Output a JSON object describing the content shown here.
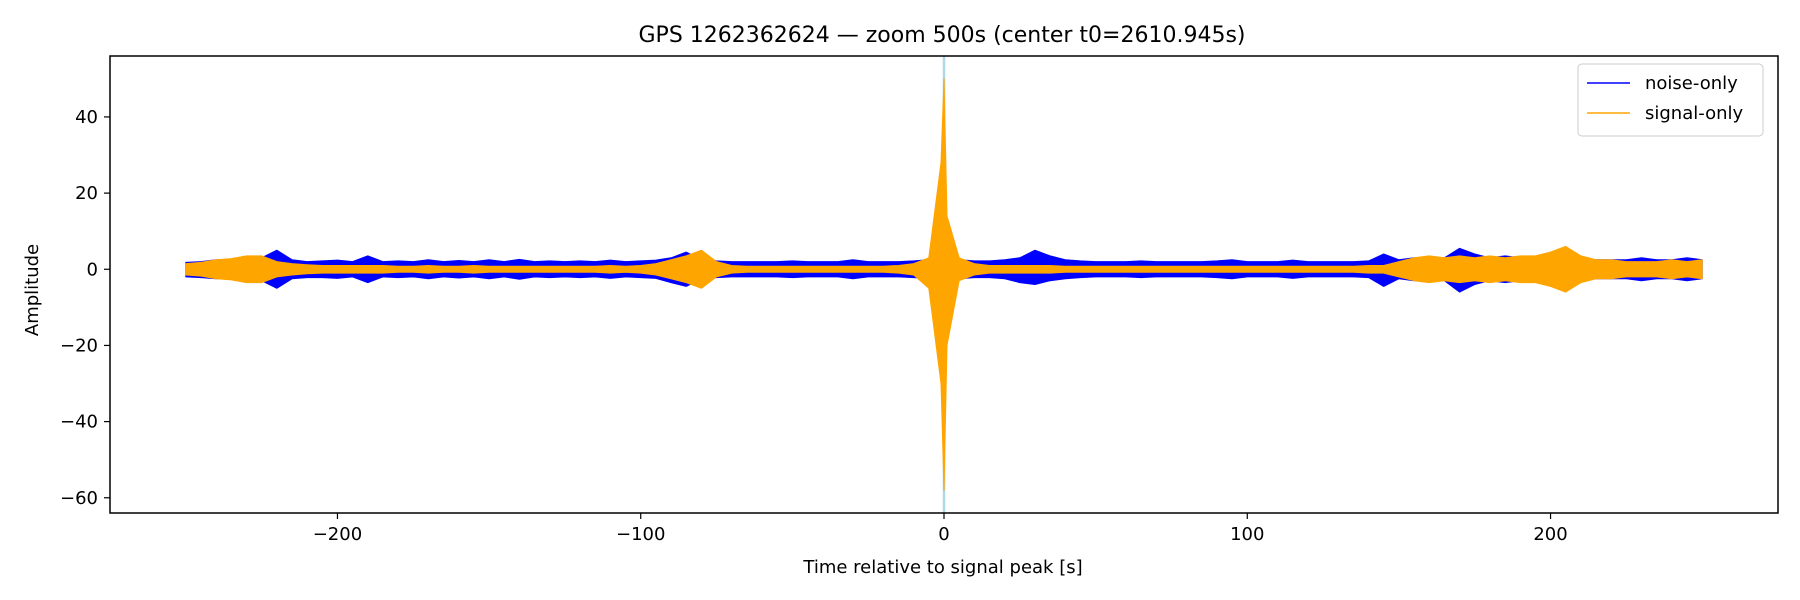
{
  "chart_data": {
    "type": "line",
    "title": "GPS 1262362624 — zoom 500s (center t0=2610.945s)",
    "xlabel": "Time relative to signal peak [s]",
    "ylabel": "Amplitude",
    "xlim": [
      -275,
      275
    ],
    "ylim": [
      -64,
      56
    ],
    "x_ticks": [
      -200,
      -100,
      0,
      100,
      200
    ],
    "x_tick_labels": [
      "−200",
      "−100",
      "0",
      "100",
      "200"
    ],
    "y_ticks": [
      -60,
      -40,
      -20,
      0,
      20,
      40
    ],
    "y_tick_labels": [
      "−60",
      "−40",
      "−20",
      "0",
      "20",
      "40"
    ],
    "grid": false,
    "legend_position": "top-right",
    "marker_line": {
      "x": 0,
      "color": "#add8e6"
    },
    "series": [
      {
        "name": "noise-only",
        "color": "#0000ff",
        "x": [
          -250,
          -245,
          -240,
          -235,
          -230,
          -225,
          -220,
          -215,
          -210,
          -205,
          -200,
          -195,
          -190,
          -185,
          -180,
          -175,
          -170,
          -165,
          -160,
          -155,
          -150,
          -145,
          -140,
          -135,
          -130,
          -125,
          -120,
          -115,
          -110,
          -105,
          -100,
          -95,
          -90,
          -85,
          -80,
          -75,
          -70,
          -65,
          -60,
          -55,
          -50,
          -45,
          -40,
          -35,
          -30,
          -25,
          -20,
          -15,
          -10,
          -5,
          -1,
          0,
          1,
          5,
          10,
          15,
          20,
          25,
          30,
          35,
          40,
          45,
          50,
          55,
          60,
          65,
          70,
          75,
          80,
          85,
          90,
          95,
          100,
          105,
          110,
          115,
          120,
          125,
          130,
          135,
          140,
          145,
          150,
          155,
          160,
          165,
          170,
          175,
          180,
          185,
          190,
          195,
          200,
          205,
          210,
          215,
          220,
          225,
          230,
          235,
          240,
          245,
          250
        ],
        "y_max": [
          1.8,
          2,
          2.5,
          2.2,
          2.8,
          3,
          5,
          2.5,
          2,
          2.2,
          2.4,
          2,
          3.5,
          2,
          2.2,
          2,
          2.5,
          2,
          2.3,
          2,
          2.5,
          2,
          2.6,
          2,
          2.2,
          2,
          2.2,
          2,
          2.4,
          2,
          2.2,
          2.4,
          3,
          4.5,
          2.5,
          2.2,
          2,
          2,
          2,
          2,
          2.2,
          2,
          2,
          2,
          2.5,
          2,
          2,
          2,
          2.2,
          2.5,
          4,
          5,
          3.5,
          2.5,
          2.2,
          2.2,
          2.5,
          3,
          5,
          3.5,
          2.5,
          2.2,
          2,
          2,
          2,
          2.2,
          2,
          2,
          2,
          2,
          2.2,
          2.5,
          2,
          2,
          2,
          2.4,
          2,
          2,
          2,
          2,
          2.2,
          4,
          2.5,
          3,
          2.5,
          3,
          5.5,
          4,
          3,
          3.5,
          3,
          2.5,
          3,
          3.5,
          3,
          2.5,
          2.5,
          2.5,
          3,
          2.5,
          2.5,
          3,
          2.5
        ],
        "y_min": [
          -2,
          -2.2,
          -2.5,
          -2.2,
          -3,
          -3,
          -5,
          -2.5,
          -2.2,
          -2.2,
          -2.4,
          -2,
          -3.5,
          -2,
          -2.2,
          -2,
          -2.5,
          -2,
          -2.3,
          -2,
          -2.5,
          -2,
          -2.6,
          -2,
          -2.2,
          -2,
          -2.2,
          -2,
          -2.4,
          -2,
          -2.2,
          -2.4,
          -3.5,
          -4.5,
          -2.5,
          -2.2,
          -2,
          -2,
          -2,
          -2,
          -2.2,
          -2,
          -2,
          -2,
          -2.5,
          -2,
          -2,
          -2,
          -2.2,
          -2.5,
          -4,
          -5,
          -3.5,
          -2.5,
          -2.2,
          -2.2,
          -2.5,
          -3.5,
          -4,
          -3,
          -2.5,
          -2.2,
          -2,
          -2,
          -2,
          -2.2,
          -2,
          -2,
          -2,
          -2,
          -2.2,
          -2.5,
          -2,
          -2,
          -2,
          -2.4,
          -2,
          -2,
          -2,
          -2,
          -2.2,
          -4.5,
          -2.5,
          -3,
          -2.5,
          -3,
          -6,
          -4,
          -3,
          -3.5,
          -3,
          -2.5,
          -3,
          -4,
          -3,
          -2.5,
          -2.5,
          -2.5,
          -3,
          -2.5,
          -2.5,
          -3,
          -2.5
        ]
      },
      {
        "name": "signal-only",
        "color": "#ffa500",
        "x": [
          -250,
          -245,
          -240,
          -235,
          -230,
          -225,
          -220,
          -215,
          -210,
          -205,
          -200,
          -195,
          -190,
          -185,
          -180,
          -175,
          -170,
          -165,
          -160,
          -155,
          -150,
          -145,
          -140,
          -135,
          -130,
          -125,
          -120,
          -115,
          -110,
          -105,
          -100,
          -95,
          -90,
          -85,
          -80,
          -75,
          -70,
          -65,
          -60,
          -55,
          -50,
          -45,
          -40,
          -35,
          -30,
          -25,
          -20,
          -15,
          -10,
          -5,
          -1,
          0,
          1,
          5,
          10,
          15,
          20,
          25,
          30,
          35,
          40,
          45,
          50,
          55,
          60,
          65,
          70,
          75,
          80,
          85,
          90,
          95,
          100,
          105,
          110,
          115,
          120,
          125,
          130,
          135,
          140,
          145,
          150,
          155,
          160,
          165,
          170,
          175,
          180,
          185,
          190,
          195,
          200,
          205,
          210,
          215,
          220,
          225,
          230,
          235,
          240,
          245,
          250
        ],
        "y_max": [
          1.5,
          1.8,
          2.5,
          2.8,
          3.5,
          3.5,
          2,
          1.5,
          1.2,
          1,
          1,
          1,
          1,
          1,
          0.8,
          0.8,
          1,
          0.8,
          0.8,
          1,
          0.8,
          0.8,
          0.8,
          0.8,
          0.8,
          0.8,
          0.8,
          0.8,
          1,
          0.8,
          1,
          1.5,
          2.5,
          3.5,
          5,
          2,
          1,
          0.8,
          0.8,
          0.8,
          0.8,
          0.8,
          0.8,
          0.8,
          0.8,
          0.8,
          0.8,
          1,
          1.5,
          3,
          28,
          50,
          14,
          3,
          1.5,
          1,
          1,
          1,
          1,
          1,
          0.8,
          0.8,
          0.8,
          0.8,
          0.8,
          0.8,
          0.8,
          0.8,
          0.8,
          0.8,
          0.8,
          0.8,
          0.8,
          0.8,
          0.8,
          0.8,
          0.8,
          0.8,
          0.8,
          0.8,
          1,
          1,
          2,
          3,
          3.5,
          3,
          3.5,
          3,
          3.5,
          3,
          3.5,
          3.5,
          4.5,
          6,
          3.5,
          2.5,
          2.5,
          2,
          2,
          2,
          2.5,
          2,
          2.5
        ],
        "y_min": [
          -1.5,
          -1.8,
          -2.5,
          -2.8,
          -3.5,
          -3.5,
          -2,
          -1.5,
          -1.2,
          -1,
          -1,
          -1,
          -1,
          -1,
          -0.8,
          -0.8,
          -1,
          -0.8,
          -0.8,
          -1,
          -0.8,
          -0.8,
          -0.8,
          -0.8,
          -0.8,
          -0.8,
          -0.8,
          -0.8,
          -1,
          -0.8,
          -1,
          -1.5,
          -2.5,
          -3.5,
          -5,
          -2,
          -1,
          -0.8,
          -0.8,
          -0.8,
          -0.8,
          -0.8,
          -0.8,
          -0.8,
          -0.8,
          -0.8,
          -0.8,
          -1,
          -1.5,
          -5,
          -30,
          -58,
          -20,
          -3,
          -1.5,
          -1,
          -1,
          -1,
          -1,
          -1,
          -0.8,
          -0.8,
          -0.8,
          -0.8,
          -0.8,
          -0.8,
          -0.8,
          -0.8,
          -0.8,
          -0.8,
          -0.8,
          -0.8,
          -0.8,
          -0.8,
          -0.8,
          -0.8,
          -0.8,
          -0.8,
          -0.8,
          -0.8,
          -1,
          -1,
          -2,
          -3,
          -3.5,
          -3,
          -3.5,
          -3,
          -3.5,
          -3,
          -3.5,
          -3.5,
          -4.5,
          -6,
          -3.5,
          -2.5,
          -2.5,
          -2,
          -2,
          -2,
          -2.5,
          -2,
          -2.5
        ]
      }
    ]
  }
}
